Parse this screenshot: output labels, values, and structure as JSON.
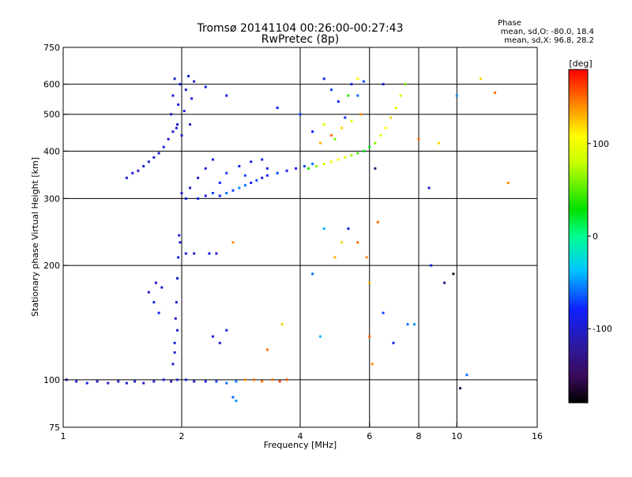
{
  "chart_data": {
    "type": "scatter",
    "title": "Tromsø 20141104 00:26:00-00:27:43",
    "subtitle": "RwPretec (8p)",
    "xlabel": "Frequency [MHz]",
    "ylabel": "Stationary phase Virtual Height [km]",
    "x_scale": "log",
    "y_scale": "log",
    "xlim": [
      1,
      16
    ],
    "ylim": [
      75,
      750
    ],
    "x_ticks": [
      1,
      2,
      4,
      6,
      8,
      10,
      16
    ],
    "x_tick_labels": [
      "1",
      "2",
      "4",
      "6",
      "8",
      "10",
      "16"
    ],
    "x_gridlines": [
      2,
      4,
      6,
      8,
      10
    ],
    "y_ticks": [
      75,
      100,
      200,
      300,
      400,
      500,
      600,
      750
    ],
    "y_tick_labels": [
      "75",
      "100",
      "200",
      "300",
      "400",
      "500",
      "600",
      "750"
    ],
    "y_gridlines": [
      100,
      200,
      300,
      400,
      500,
      600
    ],
    "grid": true,
    "colorbar": {
      "label": "[deg]",
      "min": -180,
      "max": 180,
      "tick_values": [
        -100,
        0,
        100
      ],
      "tick_labels": [
        "-100",
        "0",
        "100"
      ],
      "colormap": "rainbow (black-purple-blue-cyan-green-yellow-red)"
    },
    "stats": {
      "title": "Phase",
      "line1": "mean, sd,O:  -80.0,  18.4",
      "line2": "mean, sd,X:  96.8,  28.2"
    },
    "series": [
      {
        "role": "low-trace ~100 km",
        "points": [
          [
            1.02,
            100,
            -100
          ],
          [
            1.08,
            99,
            -95
          ],
          [
            1.15,
            98,
            -95
          ],
          [
            1.22,
            99,
            -100
          ],
          [
            1.3,
            98,
            -105
          ],
          [
            1.38,
            99,
            -100
          ],
          [
            1.45,
            98,
            -100
          ],
          [
            1.52,
            99,
            -95
          ],
          [
            1.6,
            98,
            -100
          ],
          [
            1.7,
            99,
            -100
          ],
          [
            1.8,
            100,
            -95
          ],
          [
            1.88,
            99,
            -100
          ],
          [
            1.95,
            100,
            -100
          ],
          [
            2.05,
            100,
            -95
          ],
          [
            2.15,
            99,
            -100
          ],
          [
            2.3,
            99,
            -90
          ],
          [
            2.45,
            99,
            -70
          ],
          [
            2.6,
            98,
            -60
          ],
          [
            2.75,
            99,
            -55
          ],
          [
            2.9,
            100,
            140
          ],
          [
            3.05,
            100,
            150
          ],
          [
            3.2,
            99,
            145
          ],
          [
            3.4,
            100,
            150
          ],
          [
            3.55,
            99,
            160
          ],
          [
            3.7,
            100,
            155
          ]
        ]
      },
      {
        "role": "E-region spread 105-250 km",
        "points": [
          [
            1.65,
            170,
            -100
          ],
          [
            1.7,
            160,
            -95
          ],
          [
            1.72,
            180,
            -100
          ],
          [
            1.75,
            150,
            -90
          ],
          [
            1.78,
            175,
            -95
          ],
          [
            1.9,
            110,
            -100
          ],
          [
            1.92,
            125,
            -95
          ],
          [
            1.93,
            145,
            -100
          ],
          [
            1.94,
            160,
            -95
          ],
          [
            1.95,
            185,
            -100
          ],
          [
            1.96,
            210,
            -90
          ],
          [
            1.97,
            240,
            -95
          ],
          [
            1.95,
            135,
            -100
          ],
          [
            1.92,
            118,
            -95
          ],
          [
            1.98,
            230,
            -100
          ],
          [
            2.05,
            215,
            -95
          ],
          [
            2.15,
            215,
            -100
          ],
          [
            2.35,
            215,
            -90
          ],
          [
            2.45,
            215,
            -100
          ],
          [
            2.4,
            130,
            -95
          ],
          [
            2.5,
            125,
            -100
          ],
          [
            2.6,
            135,
            -90
          ],
          [
            2.7,
            230,
            140
          ]
        ]
      },
      {
        "role": "F-region low 300-380 km",
        "points": [
          [
            2.0,
            310,
            -100
          ],
          [
            2.05,
            300,
            -95
          ],
          [
            2.1,
            320,
            -100
          ],
          [
            2.2,
            300,
            -90
          ],
          [
            2.3,
            305,
            -95
          ],
          [
            2.4,
            310,
            -70
          ],
          [
            2.5,
            305,
            -80
          ],
          [
            2.6,
            310,
            -60
          ],
          [
            2.7,
            315,
            -70
          ],
          [
            2.8,
            320,
            -50
          ],
          [
            2.9,
            325,
            -60
          ],
          [
            3.0,
            330,
            -80
          ],
          [
            3.1,
            335,
            -70
          ],
          [
            3.2,
            340,
            -90
          ],
          [
            3.3,
            345,
            -80
          ],
          [
            3.5,
            350,
            -70
          ],
          [
            3.7,
            355,
            -90
          ],
          [
            3.9,
            360,
            -80
          ],
          [
            4.1,
            365,
            -70
          ],
          [
            4.3,
            370,
            -60
          ],
          [
            2.2,
            340,
            -100
          ],
          [
            2.3,
            360,
            -95
          ],
          [
            2.4,
            380,
            -90
          ],
          [
            2.6,
            350,
            -75
          ],
          [
            2.8,
            365,
            -85
          ],
          [
            3.0,
            375,
            -95
          ],
          [
            3.2,
            380,
            -90
          ],
          [
            2.5,
            330,
            -80
          ],
          [
            2.9,
            345,
            -70
          ],
          [
            3.3,
            360,
            -100
          ]
        ]
      },
      {
        "role": "F-region oblique ramp 340-400 km",
        "points": [
          [
            1.45,
            340,
            -100
          ],
          [
            1.5,
            350,
            -95
          ],
          [
            1.55,
            355,
            -100
          ],
          [
            1.6,
            365,
            -95
          ],
          [
            1.65,
            375,
            -100
          ],
          [
            1.7,
            385,
            -95
          ],
          [
            1.75,
            395,
            -100
          ],
          [
            1.8,
            410,
            -95
          ],
          [
            1.85,
            430,
            -100
          ],
          [
            1.9,
            450,
            -95
          ],
          [
            1.95,
            470,
            -100
          ]
        ]
      },
      {
        "role": "F-region high 420-650 km",
        "points": [
          [
            1.88,
            500,
            -100
          ],
          [
            1.9,
            560,
            -95
          ],
          [
            1.92,
            620,
            -100
          ],
          [
            1.94,
            460,
            -95
          ],
          [
            1.96,
            530,
            -100
          ],
          [
            1.98,
            600,
            -95
          ],
          [
            2.0,
            440,
            -100
          ],
          [
            2.03,
            510,
            -95
          ],
          [
            2.05,
            580,
            -100
          ],
          [
            2.08,
            630,
            -95
          ],
          [
            2.1,
            470,
            -100
          ],
          [
            2.12,
            550,
            -95
          ],
          [
            2.15,
            610,
            -100
          ],
          [
            2.3,
            590,
            -90
          ],
          [
            2.6,
            560,
            -85
          ],
          [
            3.5,
            520,
            -80
          ],
          [
            4.0,
            500,
            -70
          ],
          [
            4.3,
            450,
            -80
          ],
          [
            4.6,
            620,
            -90
          ],
          [
            4.8,
            580,
            -70
          ],
          [
            5.0,
            540,
            -80
          ],
          [
            5.2,
            490,
            -75
          ],
          [
            5.4,
            600,
            -85
          ],
          [
            5.6,
            560,
            -60
          ],
          [
            5.8,
            610,
            -70
          ],
          [
            6.5,
            600,
            -95
          ]
        ]
      },
      {
        "role": "X-mode trace 360-620 km",
        "points": [
          [
            4.2,
            360,
            40
          ],
          [
            4.4,
            365,
            60
          ],
          [
            4.6,
            370,
            80
          ],
          [
            4.8,
            375,
            100
          ],
          [
            5.0,
            380,
            110
          ],
          [
            5.2,
            385,
            90
          ],
          [
            5.4,
            390,
            70
          ],
          [
            5.6,
            395,
            50
          ],
          [
            5.8,
            400,
            30
          ],
          [
            6.0,
            410,
            20
          ],
          [
            6.2,
            420,
            60
          ],
          [
            6.4,
            440,
            90
          ],
          [
            6.6,
            460,
            110
          ],
          [
            6.8,
            490,
            120
          ],
          [
            7.0,
            520,
            100
          ],
          [
            7.2,
            560,
            80
          ],
          [
            7.4,
            600,
            60
          ],
          [
            4.5,
            420,
            130
          ],
          [
            4.8,
            440,
            150
          ],
          [
            5.1,
            460,
            120
          ],
          [
            5.4,
            480,
            100
          ],
          [
            5.7,
            500,
            140
          ],
          [
            4.6,
            470,
            90
          ],
          [
            4.9,
            430,
            60
          ],
          [
            5.3,
            560,
            40
          ],
          [
            5.6,
            620,
            110
          ]
        ]
      },
      {
        "role": "scattered echoes",
        "points": [
          [
            4.3,
            190,
            -60
          ],
          [
            4.5,
            130,
            -40
          ],
          [
            4.6,
            250,
            -40
          ],
          [
            4.9,
            210,
            130
          ],
          [
            5.1,
            230,
            120
          ],
          [
            5.3,
            250,
            -90
          ],
          [
            5.6,
            230,
            150
          ],
          [
            5.9,
            210,
            140
          ],
          [
            6.0,
            180,
            130
          ],
          [
            6.0,
            130,
            150
          ],
          [
            6.1,
            110,
            140
          ],
          [
            6.3,
            260,
            150
          ],
          [
            6.5,
            150,
            -70
          ],
          [
            6.9,
            125,
            -80
          ],
          [
            7.5,
            140,
            -60
          ],
          [
            8.0,
            430,
            150
          ],
          [
            8.5,
            320,
            -100
          ],
          [
            9.0,
            420,
            120
          ],
          [
            9.3,
            180,
            -130
          ],
          [
            9.8,
            190,
            -170
          ],
          [
            10.0,
            560,
            -50
          ],
          [
            10.2,
            95,
            -160
          ],
          [
            10.6,
            103,
            -60
          ],
          [
            11.5,
            620,
            120
          ],
          [
            12.5,
            570,
            150
          ],
          [
            13.5,
            330,
            140
          ],
          [
            6.2,
            360,
            -140
          ],
          [
            8.6,
            200,
            -90
          ],
          [
            7.8,
            140,
            -50
          ],
          [
            3.6,
            140,
            120
          ],
          [
            3.3,
            120,
            150
          ],
          [
            2.75,
            88,
            -50
          ],
          [
            2.7,
            90,
            -60
          ]
        ]
      }
    ]
  }
}
